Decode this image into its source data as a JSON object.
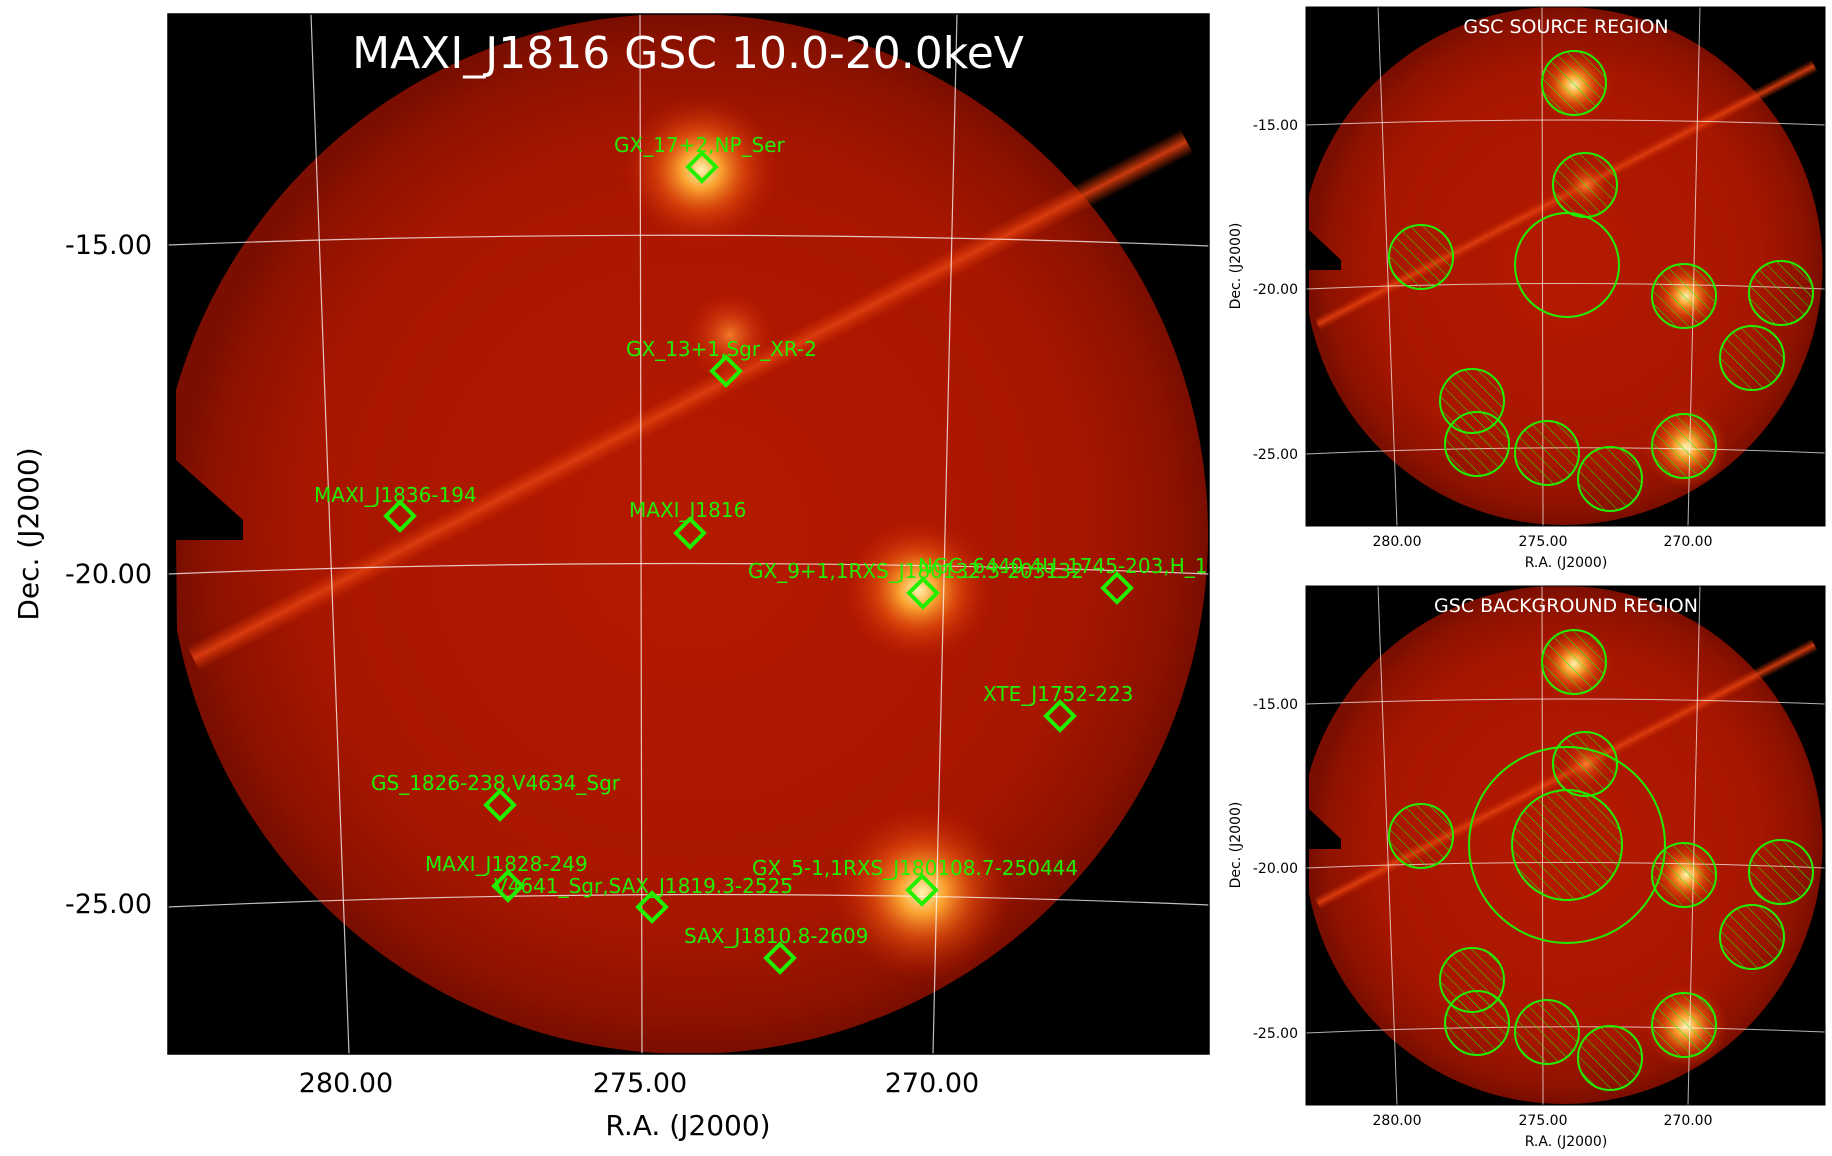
{
  "main_panel": {
    "title": "MAXI_J1816 GSC 10.0-20.0keV",
    "xlabel": "R.A. (J2000)",
    "ylabel": "Dec. (J2000)",
    "ra_ticks": [
      "280.00",
      "275.00",
      "270.00"
    ],
    "dec_ticks": [
      "-15.00",
      "-20.00",
      "-25.00"
    ],
    "sources": [
      {
        "label": "GX_17+2,NP_Ser"
      },
      {
        "label": "GX_13+1,Sgr_XR-2"
      },
      {
        "label": "MAXI_J1836-194"
      },
      {
        "label": "MAXI_J1816"
      },
      {
        "label": "GX_9+1,1RXS_J180132.3-203132"
      },
      {
        "label": "NGC_6440,4U_1745-203,H_1"
      },
      {
        "label": "XTE_J1752-223"
      },
      {
        "label": "GS_1826-238,V4634_Sgr"
      },
      {
        "label": "MAXI_J1828-249"
      },
      {
        "label": "V4641_Sgr,SAX_J1819.3-2525"
      },
      {
        "label": "GX_5-1,1RXS_J180108.7-250444"
      },
      {
        "label": "SAX_J1810.8-2609"
      }
    ]
  },
  "source_panel": {
    "title": "GSC SOURCE REGION",
    "xlabel": "R.A. (J2000)",
    "ylabel": "Dec. (J2000)",
    "ra_ticks": [
      "280.00",
      "275.00",
      "270.00"
    ],
    "dec_ticks": [
      "-15.00",
      "-20.00",
      "-25.00"
    ]
  },
  "background_panel": {
    "title": "GSC BACKGROUND REGION",
    "xlabel": "R.A. (J2000)",
    "ylabel": "Dec. (J2000)",
    "ra_ticks": [
      "280.00",
      "275.00",
      "270.00"
    ],
    "dec_ticks": [
      "-15.00",
      "-20.00",
      "-25.00"
    ]
  },
  "colors": {
    "region": "#22ee00",
    "sky_base": "#9a1500",
    "grid": "#ffffff"
  }
}
